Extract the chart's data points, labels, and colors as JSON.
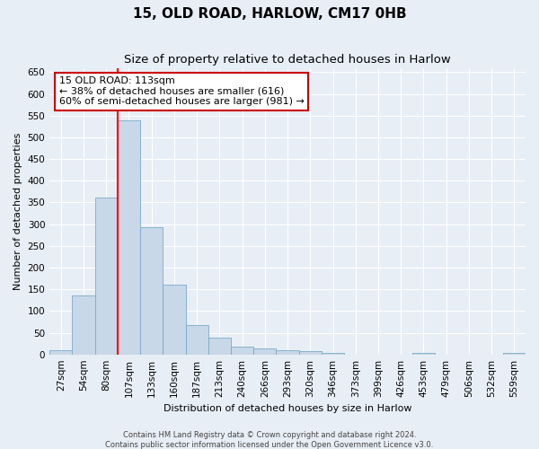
{
  "title": "15, OLD ROAD, HARLOW, CM17 0HB",
  "subtitle": "Size of property relative to detached houses in Harlow",
  "xlabel": "Distribution of detached houses by size in Harlow",
  "ylabel": "Number of detached properties",
  "categories": [
    "27sqm",
    "54sqm",
    "80sqm",
    "107sqm",
    "133sqm",
    "160sqm",
    "187sqm",
    "213sqm",
    "240sqm",
    "266sqm",
    "293sqm",
    "320sqm",
    "346sqm",
    "373sqm",
    "399sqm",
    "426sqm",
    "453sqm",
    "479sqm",
    "506sqm",
    "532sqm",
    "559sqm"
  ],
  "values": [
    10,
    135,
    362,
    540,
    292,
    160,
    67,
    38,
    18,
    14,
    10,
    8,
    3,
    0,
    0,
    0,
    4,
    0,
    0,
    0,
    3
  ],
  "bar_color": "#c8d8e8",
  "bar_edge_color": "#7aaac8",
  "red_line_x": 2.5,
  "annotation_text": "15 OLD ROAD: 113sqm\n← 38% of detached houses are smaller (616)\n60% of semi-detached houses are larger (981) →",
  "annotation_box_color": "#ffffff",
  "annotation_box_edge": "#cc0000",
  "ylim": [
    0,
    660
  ],
  "yticks": [
    0,
    50,
    100,
    150,
    200,
    250,
    300,
    350,
    400,
    450,
    500,
    550,
    600,
    650
  ],
  "background_color": "#e8eef5",
  "grid_color": "#ffffff",
  "footer1": "Contains HM Land Registry data © Crown copyright and database right 2024.",
  "footer2": "Contains public sector information licensed under the Open Government Licence v3.0.",
  "title_fontsize": 11,
  "subtitle_fontsize": 9.5,
  "axis_label_fontsize": 8,
  "tick_fontsize": 7.5,
  "annotation_fontsize": 8,
  "footer_fontsize": 6
}
